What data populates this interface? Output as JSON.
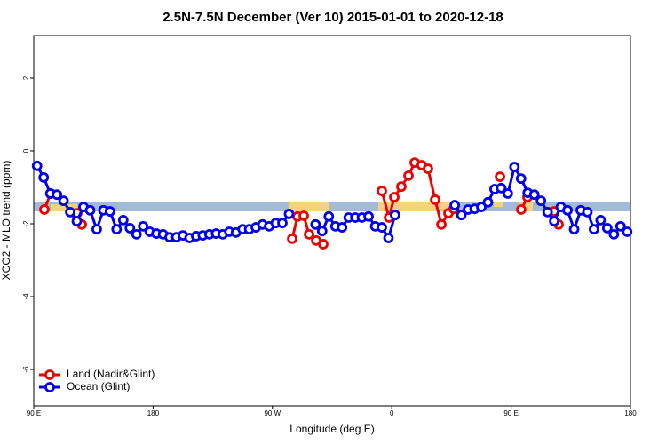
{
  "chart_data": {
    "type": "line",
    "title": "2.5N-7.5N December (Ver 10)   2015-01-01 to 2020-12-18",
    "x_label": "Longitude (deg E)",
    "y_label": "XCO2 - MLO trend (ppm)",
    "xlim": [
      90,
      540
    ],
    "ylim": [
      -7,
      3.17
    ],
    "xticks": [
      {
        "value": 90,
        "label": "90 E"
      },
      {
        "value": 180,
        "label": "180"
      },
      {
        "value": 270,
        "label": "90 W"
      },
      {
        "value": 360,
        "label": "0"
      },
      {
        "value": 450,
        "label": "90 E"
      },
      {
        "value": 540,
        "label": "180"
      }
    ],
    "yticks": [
      -6,
      -4,
      -2,
      0,
      2
    ],
    "legend": "bottom-left",
    "series": [
      {
        "name": "Land (Nadir&Glint)",
        "color": "#ee0000",
        "x": [
          98.0,
          102.7,
          null,
          122.8,
          126.2,
          null,
          284.9,
          288.9,
          293.6,
          297.6,
          303.0,
          308.3,
          null,
          352.5,
          357.9,
          361.9,
          367.2,
          372.6,
          377.3,
          382.6,
          387.3,
          392.7,
          397.4,
          402.7,
          406.7,
          null,
          441.6,
          null,
          457.6,
          462.3,
          null,
          482.4,
          485.8
        ],
        "values": [
          -1.61,
          -1.17,
          null,
          -1.71,
          -2.02,
          null,
          -2.41,
          -1.8,
          -1.78,
          -2.29,
          -2.46,
          -2.56,
          null,
          -1.1,
          -1.83,
          -1.27,
          -0.98,
          -0.68,
          -0.32,
          -0.39,
          -0.49,
          -1.34,
          -2.02,
          -1.71,
          -1.59,
          null,
          -0.71,
          null,
          -1.61,
          -1.27,
          null,
          -1.66,
          -2.02
        ]
      },
      {
        "name": "Ocean (Glint)",
        "color": "#0000ee",
        "x": [
          92.5,
          97.5,
          102.5,
          107.5,
          112.5,
          117.5,
          122.5,
          127.5,
          132.5,
          137.5,
          142.5,
          147.5,
          152.5,
          157.5,
          162.5,
          167.5,
          172.5,
          177.5,
          182.5,
          187.5,
          192.5,
          197.5,
          202.5,
          207.5,
          212.5,
          217.5,
          222.5,
          227.5,
          232.5,
          237.5,
          242.5,
          247.5,
          252.5,
          257.5,
          262.5,
          267.5,
          272.5,
          277.5,
          282.5,
          287.5,
          292.5,
          297.5,
          302.5,
          307.5,
          312.5,
          317.5,
          322.5,
          327.5,
          332.5,
          337.5,
          342.5,
          347.5,
          352.5,
          357.5,
          362.5,
          367.5,
          372.5,
          377.5,
          382.5,
          387.5,
          392.5,
          397.5,
          402.5,
          407.5,
          412.5,
          417.5,
          422.5,
          427.5,
          432.5,
          437.5,
          442.5,
          447.5,
          452.5,
          457.5,
          462.5,
          467.5,
          472.5,
          477.5,
          482.5,
          487.5,
          492.5,
          497.5,
          502.5,
          507.5,
          512.5,
          517.5,
          522.5,
          527.5,
          532.5,
          537.5
        ],
        "values": [
          -0.41,
          -0.73,
          -1.17,
          -1.2,
          -1.37,
          -1.68,
          -1.93,
          -1.54,
          -1.63,
          -2.15,
          -1.63,
          -1.66,
          -2.15,
          -1.9,
          -2.12,
          -2.29,
          -2.07,
          -2.22,
          -2.27,
          -2.29,
          -2.37,
          -2.37,
          -2.32,
          -2.39,
          -2.34,
          -2.32,
          -2.29,
          -2.27,
          -2.29,
          -2.22,
          -2.24,
          -2.15,
          -2.15,
          -2.1,
          -2.02,
          -2.07,
          -1.98,
          -1.98,
          -1.73,
          null,
          null,
          null,
          -2.02,
          -2.2,
          -1.8,
          -2.07,
          -2.1,
          -1.83,
          -1.83,
          -1.83,
          -1.8,
          -2.07,
          -2.1,
          -2.39,
          -1.76,
          null,
          null,
          null,
          null,
          null,
          null,
          null,
          null,
          -1.49,
          -1.76,
          -1.61,
          -1.59,
          -1.54,
          -1.41,
          -1.05,
          -1.02,
          -1.17,
          -0.44,
          -0.76,
          -1.15,
          -1.2,
          -1.37,
          -1.68,
          -1.93,
          -1.54,
          -1.63,
          -2.15,
          -1.63,
          -1.68,
          -2.15,
          -1.9,
          -2.12,
          -2.29,
          -2.07,
          -2.22
        ]
      }
    ]
  }
}
